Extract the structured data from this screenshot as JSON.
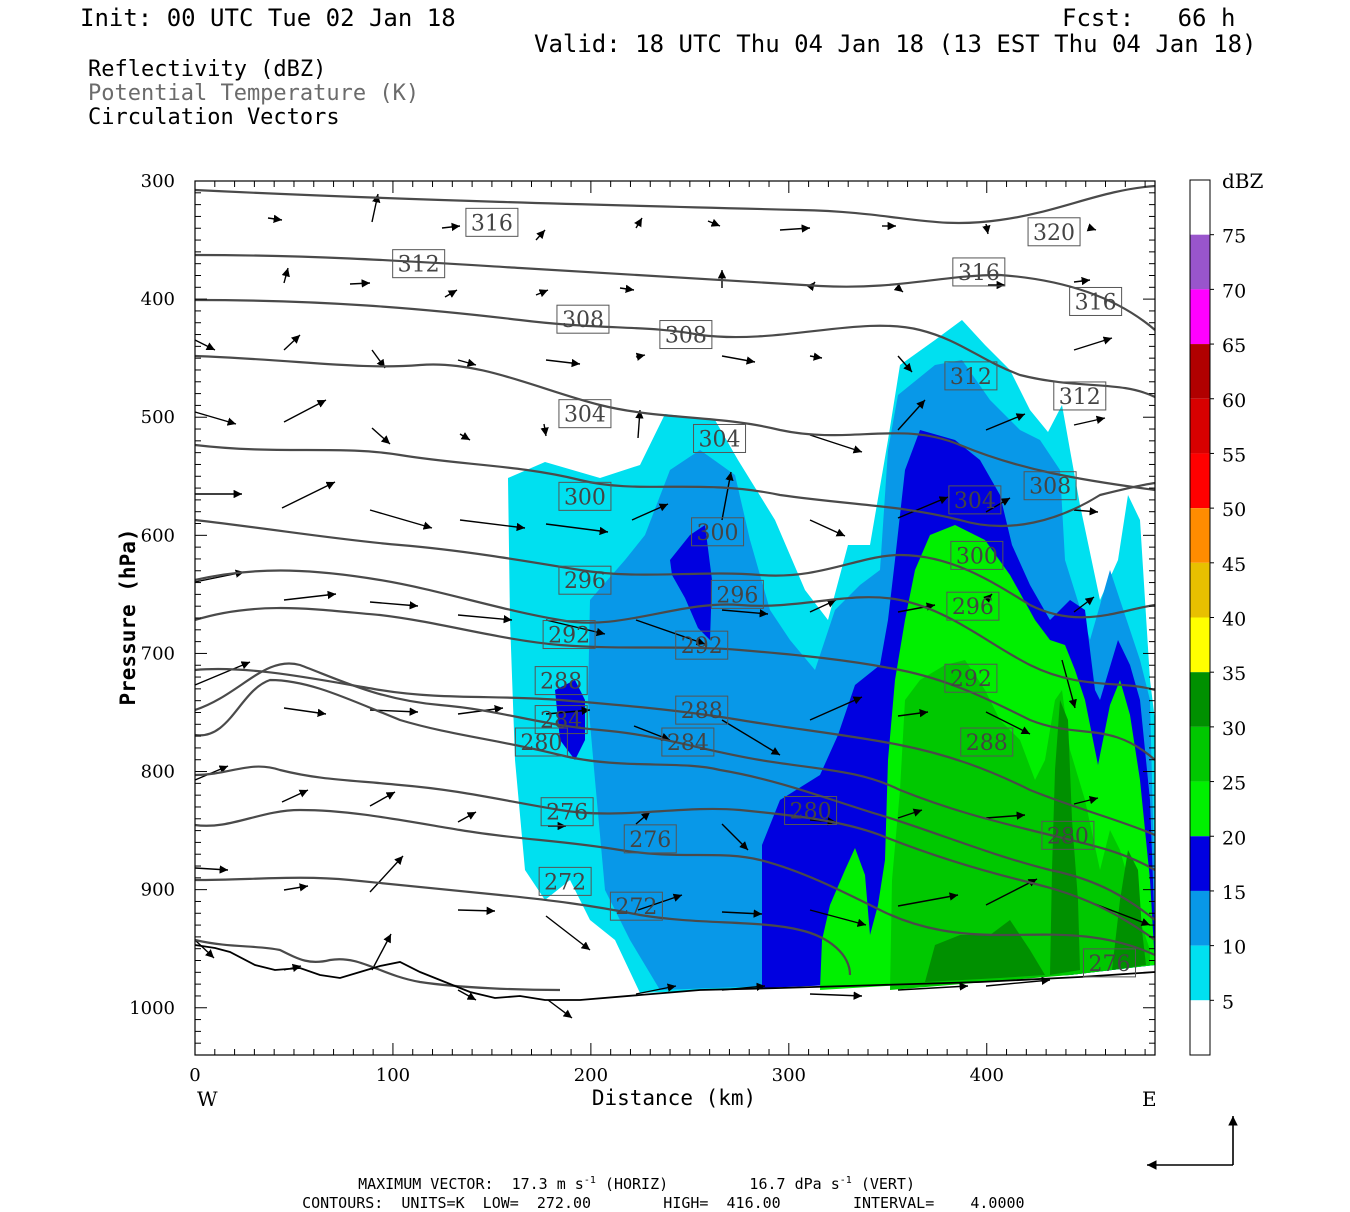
{
  "header": {
    "init": "Init: 00 UTC Tue 02 Jan 18",
    "fcst": "Fcst:   66 h",
    "valid": "Valid: 18 UTC Thu 04 Jan 18 (13 EST Thu 04 Jan 18)"
  },
  "legend_lines": {
    "reflectivity": "Reflectivity (dBZ)",
    "theta": "Potential Temperature (K)",
    "vectors": "Circulation Vectors"
  },
  "footer": {
    "max_vector_1": "MAXIMUM VECTOR:  17.3 m s",
    "max_vector_2": "(HORIZ)",
    "max_vector_3": "16.7 dPa s",
    "max_vector_4": "(VERT)",
    "sup": "-1",
    "contours_1": "CONTOURS:  UNITS=K  LOW=  272.00",
    "contours_2": "HIGH=  416.00",
    "contours_3": "INTERVAL=    4.0000"
  },
  "chart_data": {
    "type": "cross-section",
    "xlabel": "Distance (km)",
    "ylabel": "Pressure (hPa)",
    "x_ticks": [
      "0",
      "100",
      "200",
      "300",
      "400"
    ],
    "x_tick_values": [
      0,
      100,
      200,
      300,
      400
    ],
    "y_ticks": [
      "300",
      "400",
      "500",
      "600",
      "700",
      "800",
      "900",
      "1000"
    ],
    "y_tick_values": [
      300,
      400,
      500,
      600,
      700,
      800,
      900,
      1000
    ],
    "xlim": [
      0,
      485
    ],
    "ylim": [
      1040,
      300
    ],
    "left_end": "W",
    "right_end": "E",
    "colorbar": {
      "title": "dBZ",
      "levels": [
        "5",
        "10",
        "15",
        "20",
        "25",
        "30",
        "35",
        "40",
        "45",
        "50",
        "55",
        "60",
        "65",
        "70",
        "75"
      ],
      "colors": [
        "#ffffff",
        "#00e0f0",
        "#0898e8",
        "#0000e0",
        "#00f000",
        "#00c800",
        "#009000",
        "#ffff00",
        "#e8c000",
        "#ff8c00",
        "#ff0000",
        "#d80000",
        "#b00000",
        "#ff00ff",
        "#9955cc",
        "#ffffff"
      ]
    },
    "theta_contours": {
      "units": "K",
      "low": 272,
      "high": 416,
      "interval": 4,
      "labels": [
        {
          "text": "316",
          "x": 150,
          "p": 335
        },
        {
          "text": "312",
          "x": 113,
          "p": 370
        },
        {
          "text": "320",
          "x": 434,
          "p": 343
        },
        {
          "text": "316",
          "x": 396,
          "p": 377
        },
        {
          "text": "316",
          "x": 455,
          "p": 402
        },
        {
          "text": "308",
          "x": 196,
          "p": 417
        },
        {
          "text": "308",
          "x": 248,
          "p": 430
        },
        {
          "text": "312",
          "x": 392,
          "p": 465
        },
        {
          "text": "312",
          "x": 447,
          "p": 482
        },
        {
          "text": "304",
          "x": 197,
          "p": 497
        },
        {
          "text": "304",
          "x": 265,
          "p": 518
        },
        {
          "text": "308",
          "x": 432,
          "p": 558
        },
        {
          "text": "304",
          "x": 394,
          "p": 570
        },
        {
          "text": "300",
          "x": 197,
          "p": 567
        },
        {
          "text": "300",
          "x": 264,
          "p": 597
        },
        {
          "text": "300",
          "x": 395,
          "p": 617
        },
        {
          "text": "296",
          "x": 197,
          "p": 638
        },
        {
          "text": "296",
          "x": 274,
          "p": 650
        },
        {
          "text": "296",
          "x": 393,
          "p": 660
        },
        {
          "text": "292",
          "x": 189,
          "p": 684
        },
        {
          "text": "292",
          "x": 256,
          "p": 693
        },
        {
          "text": "292",
          "x": 392,
          "p": 721
        },
        {
          "text": "288",
          "x": 185,
          "p": 723
        },
        {
          "text": "288",
          "x": 256,
          "p": 748
        },
        {
          "text": "288",
          "x": 400,
          "p": 775
        },
        {
          "text": "284",
          "x": 185,
          "p": 756
        },
        {
          "text": "284",
          "x": 249,
          "p": 775
        },
        {
          "text": "280",
          "x": 175,
          "p": 775
        },
        {
          "text": "280",
          "x": 311,
          "p": 833
        },
        {
          "text": "280",
          "x": 441,
          "p": 854
        },
        {
          "text": "276",
          "x": 188,
          "p": 834
        },
        {
          "text": "276",
          "x": 230,
          "p": 857
        },
        {
          "text": "276",
          "x": 462,
          "p": 962
        },
        {
          "text": "272",
          "x": 187,
          "p": 893
        },
        {
          "text": "272",
          "x": 223,
          "p": 914
        }
      ]
    },
    "vectors_max": {
      "horiz": 17.3,
      "horiz_units": "m s-1",
      "vert": 16.7,
      "vert_units": "dPa s-1"
    }
  }
}
